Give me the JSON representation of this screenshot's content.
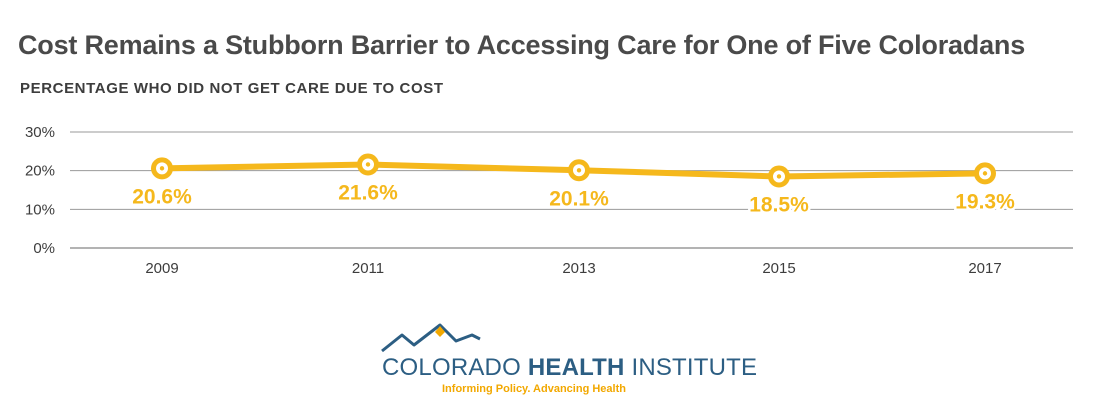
{
  "title": "Cost Remains a Stubborn Barrier to Accessing Care for One of Five Coloradans",
  "subtitle": "PERCENTAGE WHO DID NOT GET CARE DUE TO COST",
  "colors": {
    "line": "#f5b81c",
    "grid": "#9a9a9a",
    "text": "#3d3d3d",
    "brand_blue": "#2c5e83",
    "brand_gold": "#f2a800"
  },
  "chart_data": {
    "type": "line",
    "x": [
      "2009",
      "2011",
      "2013",
      "2015",
      "2017"
    ],
    "values": [
      20.6,
      21.6,
      20.1,
      18.5,
      19.3
    ],
    "data_labels": [
      "20.6%",
      "21.6%",
      "20.1%",
      "18.5%",
      "19.3%"
    ],
    "y_ticks": [
      "0%",
      "10%",
      "20%",
      "30%"
    ],
    "ylim": [
      0,
      30
    ],
    "grid": true,
    "title": "Cost Remains a Stubborn Barrier to Accessing Care for One of Five Coloradans",
    "ylabel": "PERCENTAGE WHO DID NOT GET CARE DUE TO COST"
  },
  "logo": {
    "name_light": "COLORADO ",
    "name_bold": "HEALTH",
    "name_end": " INSTITUTE",
    "tagline": "Informing Policy. Advancing Health"
  }
}
